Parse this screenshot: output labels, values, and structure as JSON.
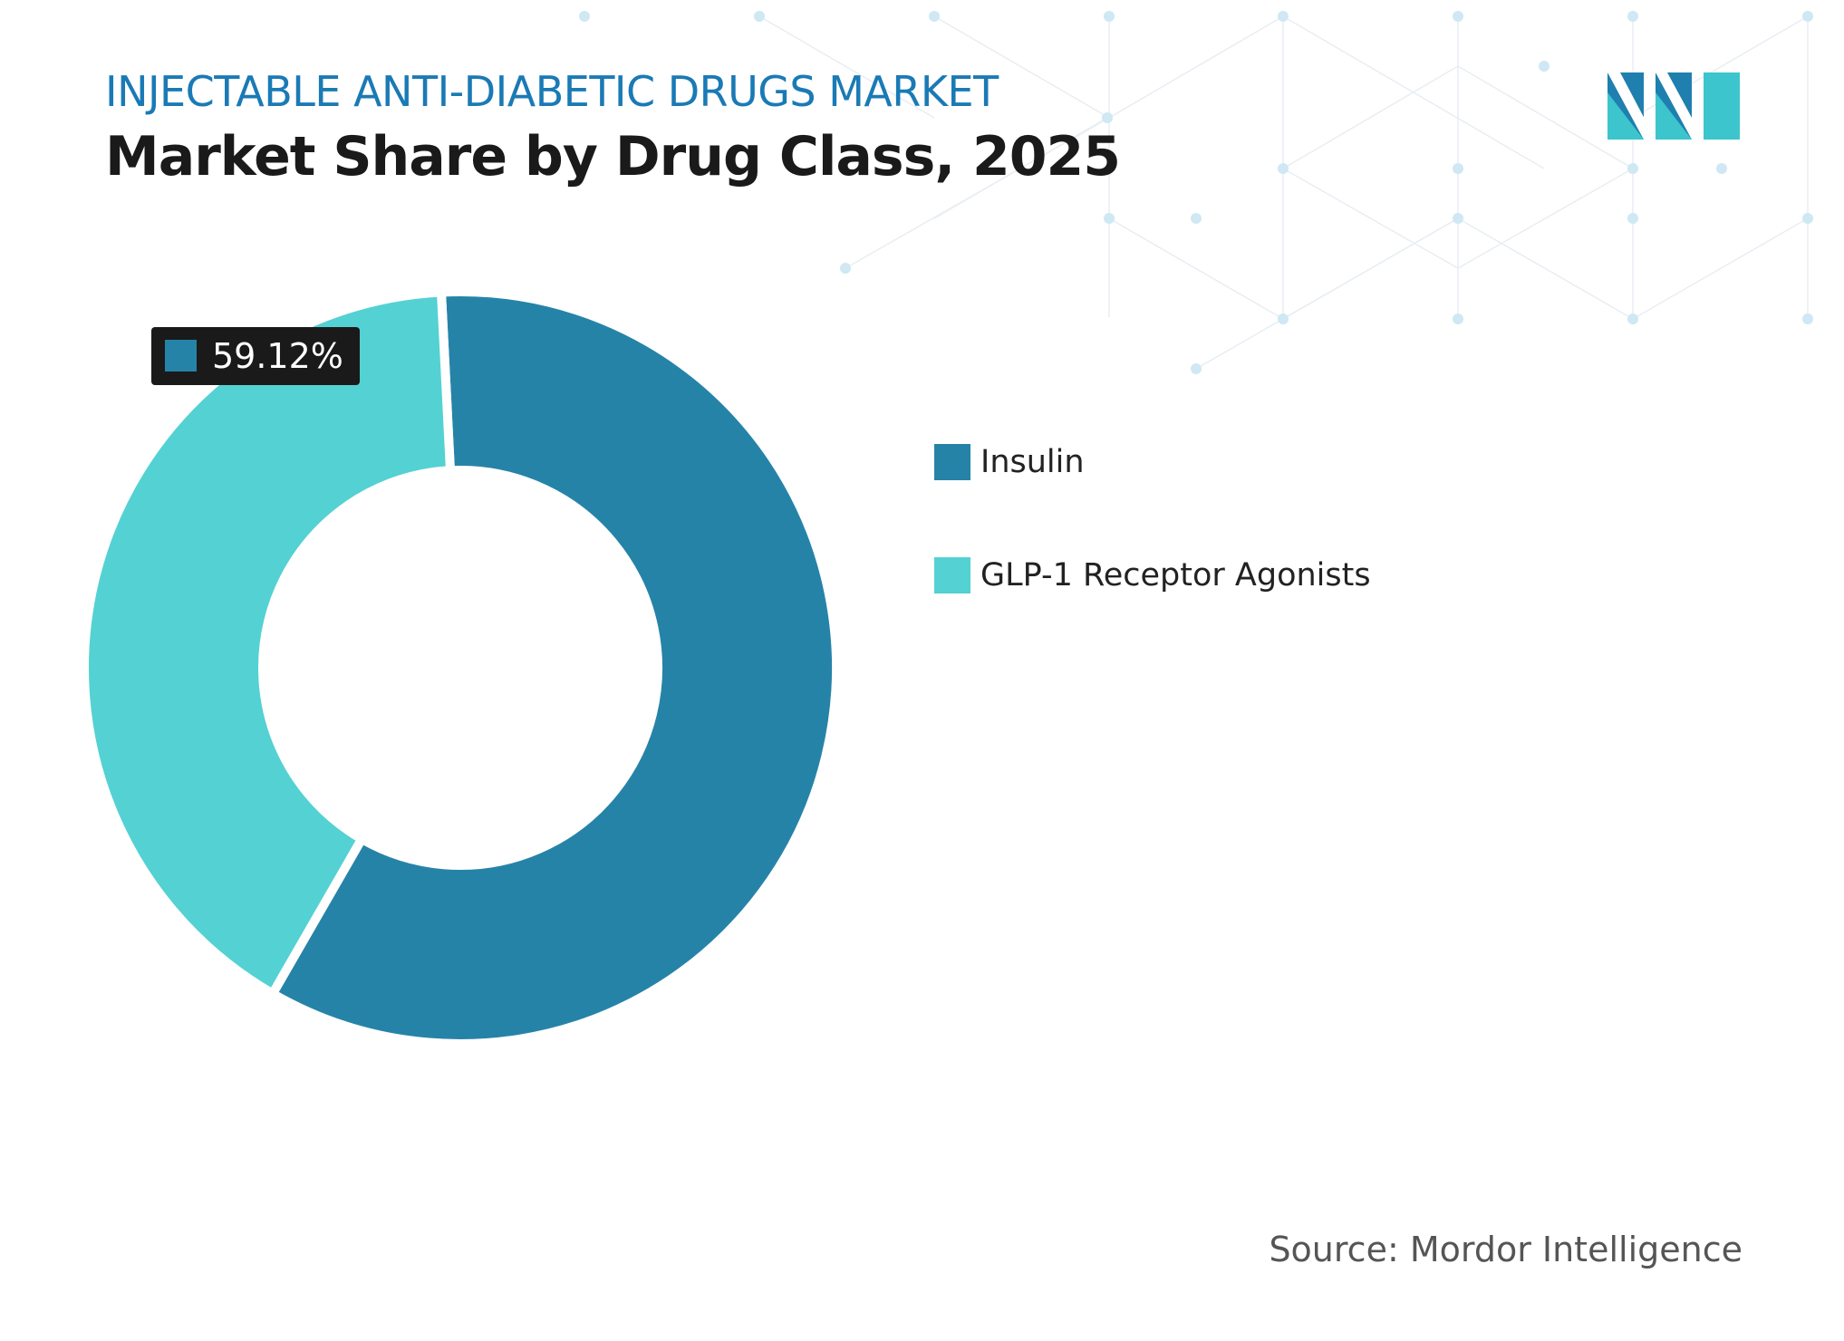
{
  "header": {
    "subtitle": "INJECTABLE ANTI-DIABETIC DRUGS MARKET",
    "title": "Market Share by Drug Class, 2025"
  },
  "colors": {
    "subtitle": "#1a7ab5",
    "title": "#1a1a1a",
    "insulin": "#2683a8",
    "glp1": "#54d1d3",
    "label_bg": "#1a1a1a",
    "logo_dark": "#1f7fae",
    "logo_light": "#3cc5cc"
  },
  "chart_data": {
    "type": "pie",
    "variant": "donut",
    "start_angle_deg": 357.1,
    "series": [
      {
        "name": "Insulin",
        "value": 59.12,
        "color": "#2683a8",
        "label": "59.12%"
      },
      {
        "name": "GLP-1 Receptor Agonists",
        "value": 40.88,
        "color": "#54d1d3",
        "label": ""
      }
    ],
    "legend_position": "right"
  },
  "legend": {
    "items": [
      {
        "label": "Insulin",
        "color": "#2683a8"
      },
      {
        "label": "GLP-1 Receptor Agonists",
        "color": "#54d1d3"
      }
    ]
  },
  "footer": {
    "source": "Source: Mordor Intelligence"
  },
  "logo": {
    "icon": "mordor-intelligence-logo"
  }
}
